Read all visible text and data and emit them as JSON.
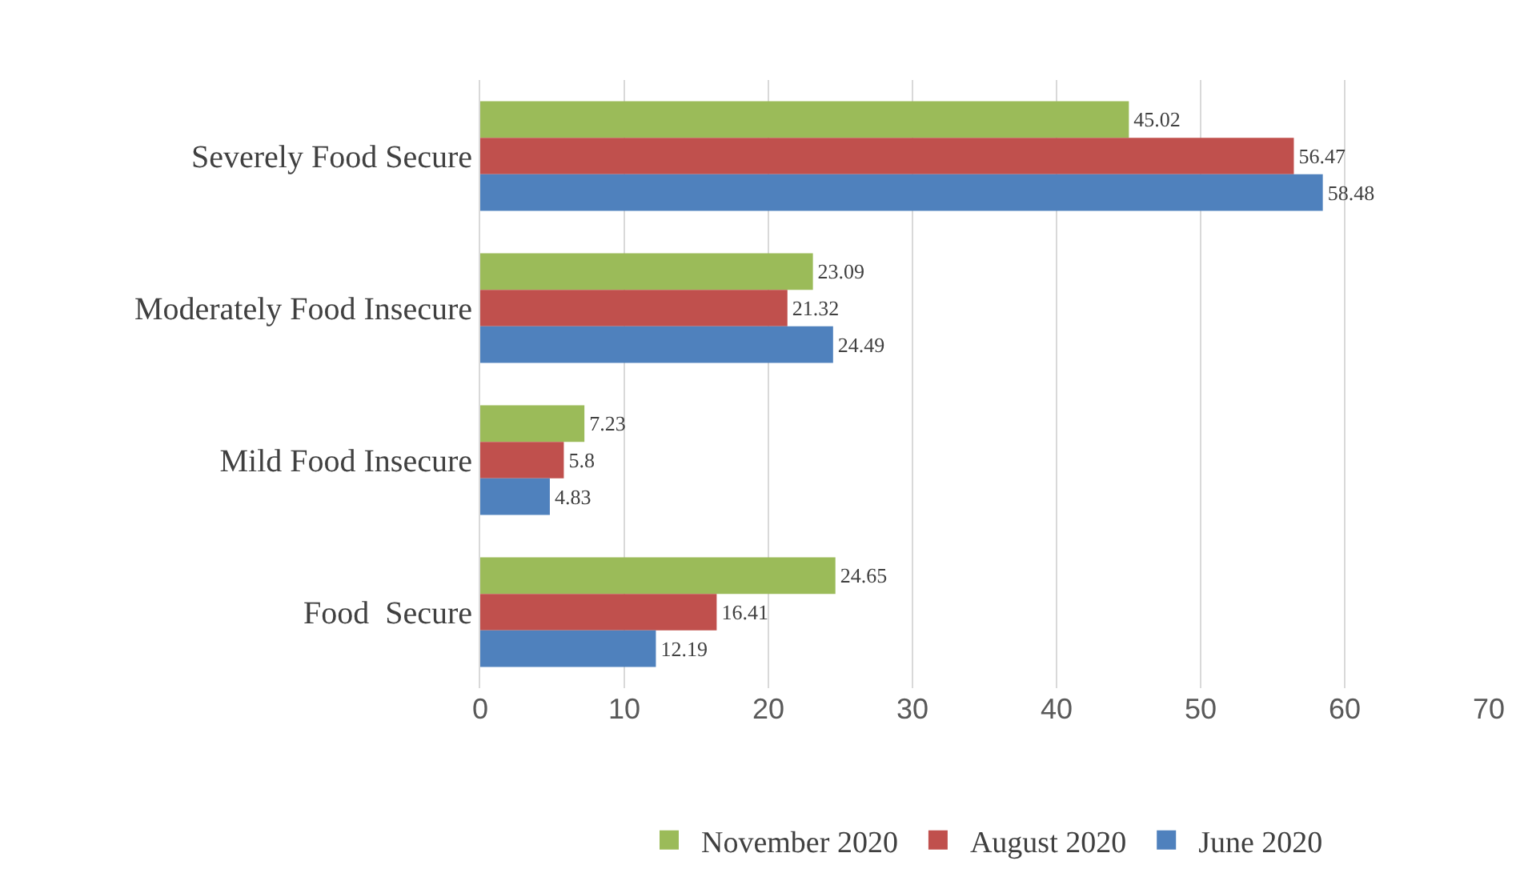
{
  "chart_data": {
    "type": "bar",
    "orientation": "horizontal",
    "categories": [
      "Severely Food Secure",
      "Moderately Food Insecure",
      "Mild Food Insecure",
      "Food  Secure"
    ],
    "series": [
      {
        "name": "November 2020",
        "color": "#9bbb59",
        "values": [
          45.02,
          23.09,
          7.23,
          24.65
        ]
      },
      {
        "name": "August 2020",
        "color": "#c0504d",
        "values": [
          56.47,
          21.32,
          5.8,
          16.41
        ]
      },
      {
        "name": "June 2020",
        "color": "#4f81bd",
        "values": [
          58.48,
          24.49,
          4.83,
          12.19
        ]
      }
    ],
    "xlim": [
      0,
      70
    ],
    "xticks": [
      0,
      10,
      20,
      30,
      40,
      50,
      60,
      70
    ],
    "grid": "x",
    "legend": "bottom",
    "data_labels": true
  }
}
